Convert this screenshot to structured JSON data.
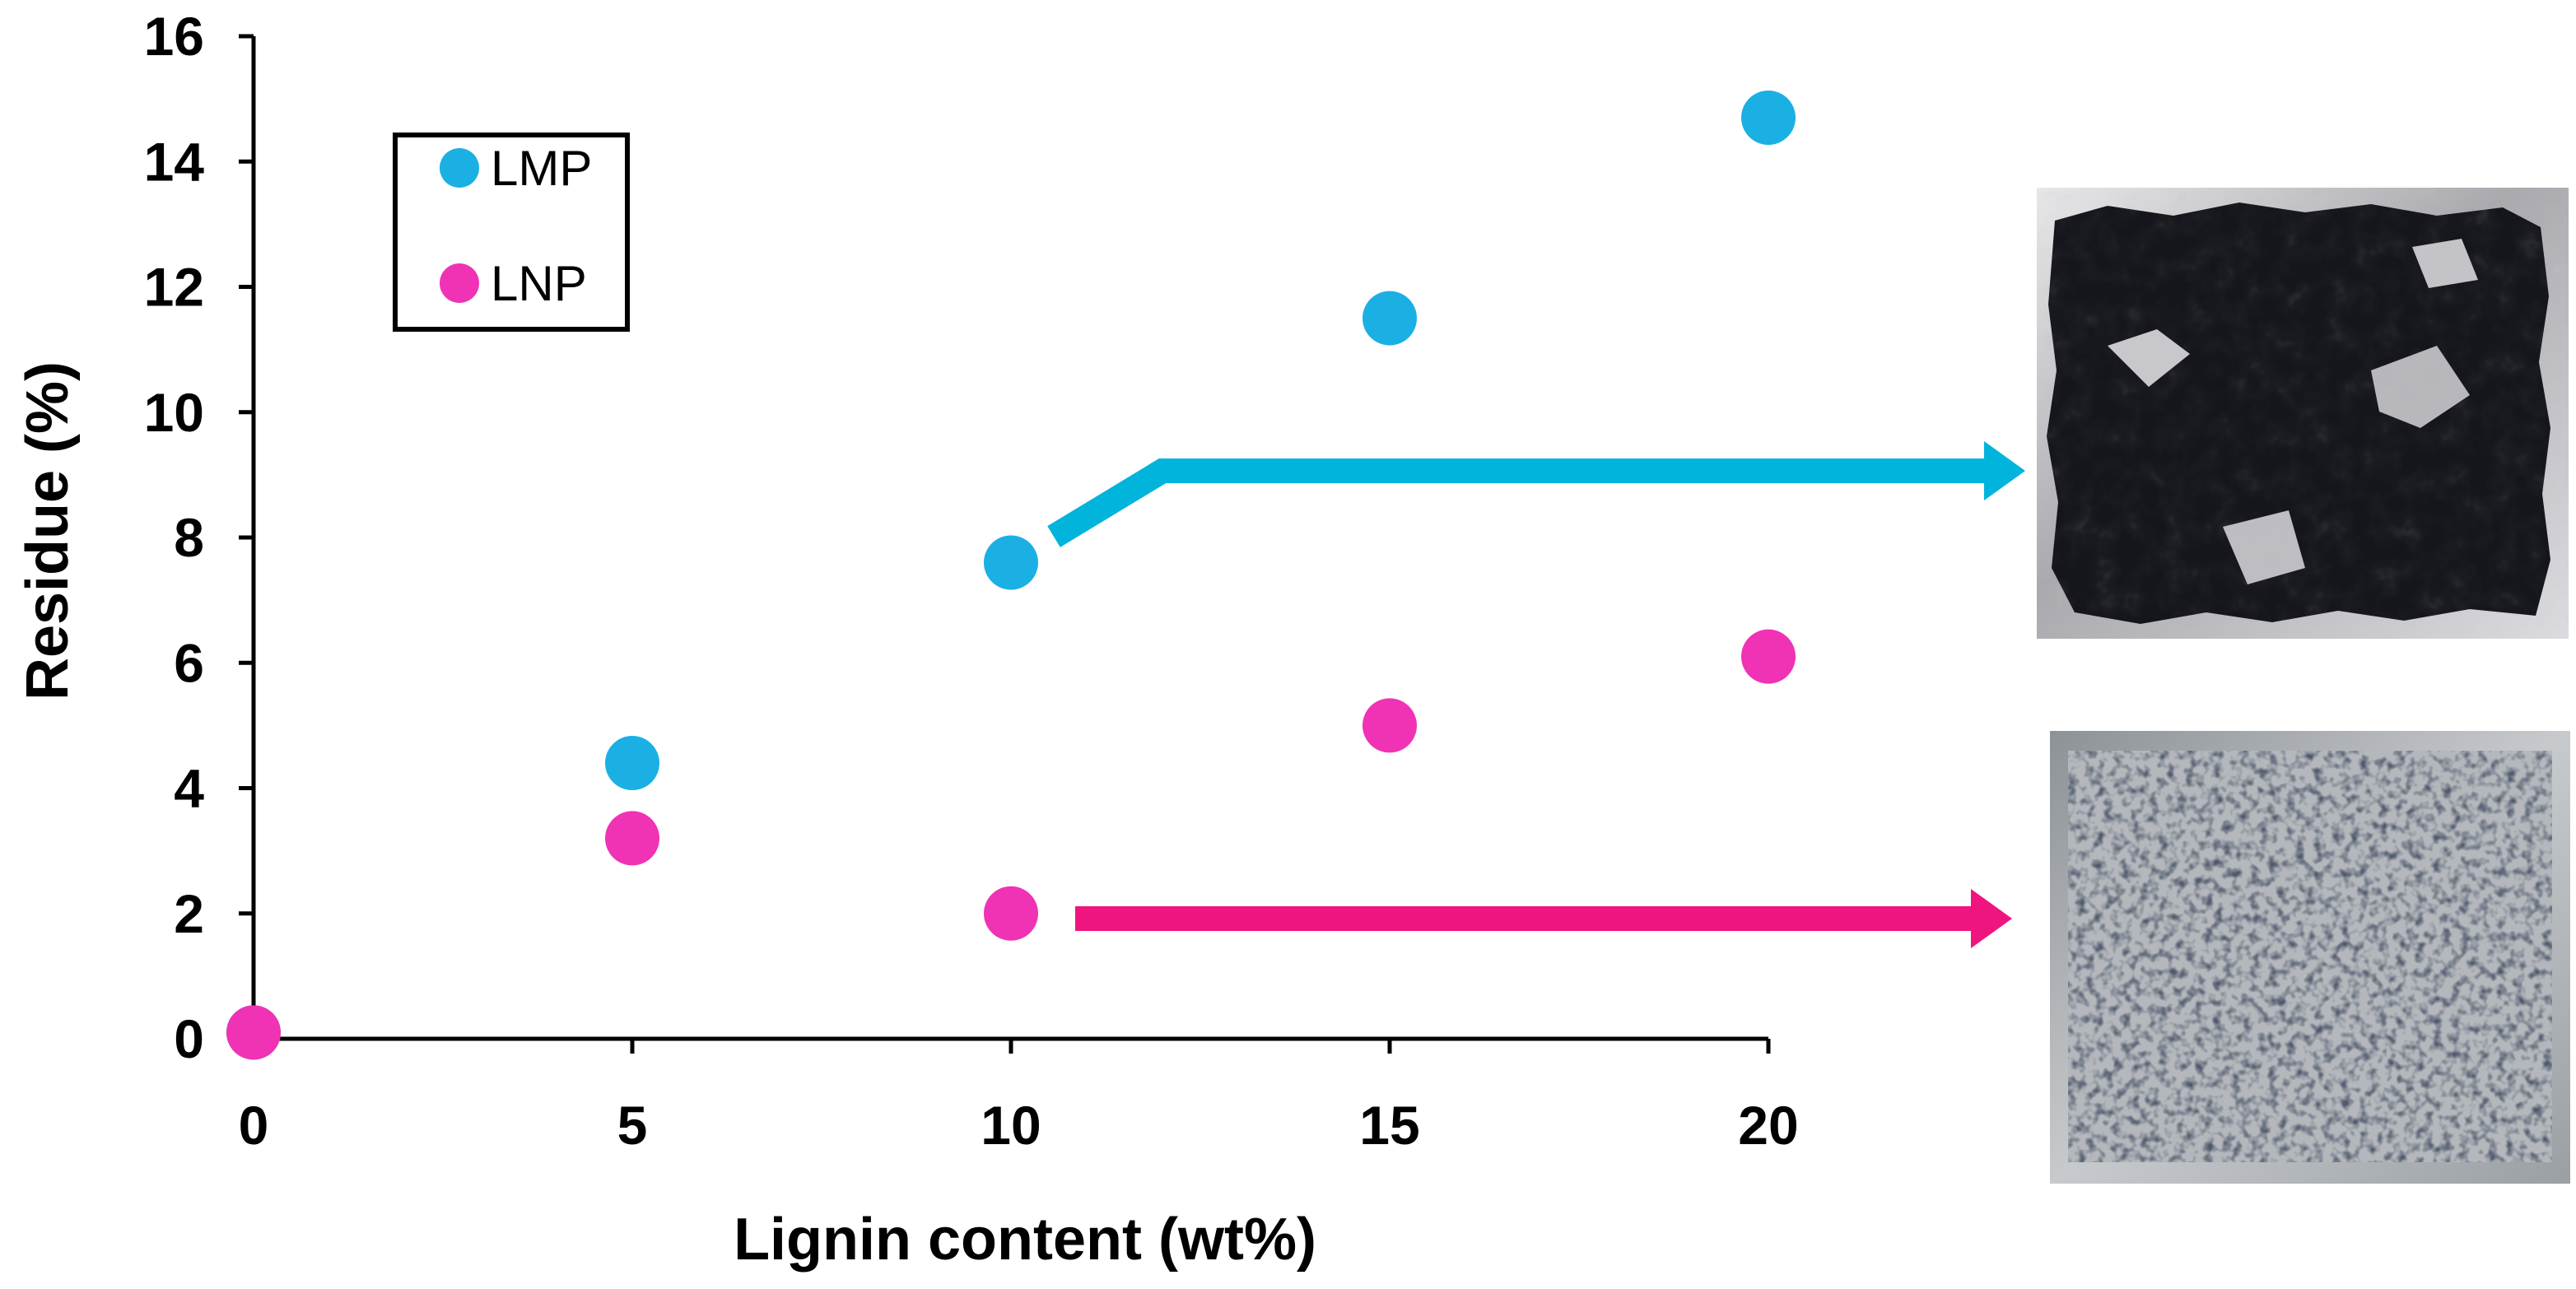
{
  "chart_data": {
    "type": "scatter",
    "title": "",
    "xlabel": "Lignin content (wt%)",
    "ylabel": "Residue (%)",
    "xlim": [
      0,
      20
    ],
    "ylim": [
      0,
      16
    ],
    "xticks": [
      0,
      5,
      10,
      15,
      20
    ],
    "yticks": [
      0,
      2,
      4,
      6,
      8,
      10,
      12,
      14,
      16
    ],
    "grid": false,
    "legend_position": "top-left",
    "series": [
      {
        "name": "LMP",
        "color": "#1ab0e4",
        "points": [
          {
            "x": 0,
            "y": 0.1
          },
          {
            "x": 5,
            "y": 4.4
          },
          {
            "x": 10,
            "y": 7.6
          },
          {
            "x": 15,
            "y": 11.5
          },
          {
            "x": 20,
            "y": 14.7
          }
        ]
      },
      {
        "name": "LNP",
        "color": "#f032b4",
        "points": [
          {
            "x": 0,
            "y": 0.1
          },
          {
            "x": 5,
            "y": 3.2
          },
          {
            "x": 10,
            "y": 2.0
          },
          {
            "x": 15,
            "y": 5.0
          },
          {
            "x": 20,
            "y": 6.1
          }
        ]
      }
    ],
    "annotations": [
      {
        "type": "arrow",
        "series": "LMP",
        "from_x": 10,
        "color": "#00b4dc",
        "target": "photo-lmp"
      },
      {
        "type": "arrow",
        "series": "LNP",
        "from_x": 10,
        "color": "#f0147f",
        "target": "photo-lnp"
      }
    ]
  },
  "photos": [
    {
      "id": "photo-lmp",
      "description": "dark charred residue on foil"
    },
    {
      "id": "photo-lnp",
      "description": "speckled residue on foil"
    }
  ]
}
